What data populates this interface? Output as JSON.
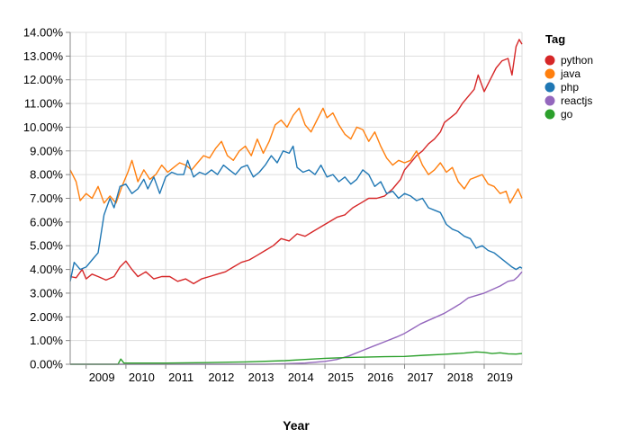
{
  "chart_data": {
    "type": "line",
    "xlabel": "Year",
    "ylabel": "",
    "legend_title": "Tag",
    "legend_position": "right",
    "grid": true,
    "xlim": [
      2008.6,
      2019.95
    ],
    "ylim": [
      0,
      14
    ],
    "x_ticks": [
      {
        "value": 2009,
        "label": "2009"
      },
      {
        "value": 2010,
        "label": "2010"
      },
      {
        "value": 2011,
        "label": "2011"
      },
      {
        "value": 2012,
        "label": "2012"
      },
      {
        "value": 2013,
        "label": "2013"
      },
      {
        "value": 2014,
        "label": "2014"
      },
      {
        "value": 2015,
        "label": "2015"
      },
      {
        "value": 2016,
        "label": "2016"
      },
      {
        "value": 2017,
        "label": "2017"
      },
      {
        "value": 2018,
        "label": "2018"
      },
      {
        "value": 2019,
        "label": "2019"
      }
    ],
    "y_ticks": [
      {
        "value": 0,
        "label": "0.00%"
      },
      {
        "value": 1,
        "label": "1.00%"
      },
      {
        "value": 2,
        "label": "2.00%"
      },
      {
        "value": 3,
        "label": "3.00%"
      },
      {
        "value": 4,
        "label": "4.00%"
      },
      {
        "value": 5,
        "label": "5.00%"
      },
      {
        "value": 6,
        "label": "6.00%"
      },
      {
        "value": 7,
        "label": "7.00%"
      },
      {
        "value": 8,
        "label": "8.00%"
      },
      {
        "value": 9,
        "label": "9.00%"
      },
      {
        "value": 10,
        "label": "10.00%"
      },
      {
        "value": 11,
        "label": "11.00%"
      },
      {
        "value": 12,
        "label": "12.00%"
      },
      {
        "value": 13,
        "label": "13.00%"
      },
      {
        "value": 14,
        "label": "14.00%"
      }
    ],
    "series": [
      {
        "name": "python",
        "color": "#d62728",
        "points": [
          [
            2008.6,
            3.7
          ],
          [
            2008.75,
            3.65
          ],
          [
            2008.9,
            4.0
          ],
          [
            2009.0,
            3.6
          ],
          [
            2009.15,
            3.8
          ],
          [
            2009.3,
            3.7
          ],
          [
            2009.5,
            3.55
          ],
          [
            2009.7,
            3.7
          ],
          [
            2009.85,
            4.1
          ],
          [
            2010.0,
            4.35
          ],
          [
            2010.15,
            4.0
          ],
          [
            2010.3,
            3.7
          ],
          [
            2010.5,
            3.9
          ],
          [
            2010.7,
            3.6
          ],
          [
            2010.9,
            3.7
          ],
          [
            2011.1,
            3.7
          ],
          [
            2011.3,
            3.5
          ],
          [
            2011.5,
            3.6
          ],
          [
            2011.7,
            3.4
          ],
          [
            2011.9,
            3.6
          ],
          [
            2012.1,
            3.7
          ],
          [
            2012.3,
            3.8
          ],
          [
            2012.5,
            3.9
          ],
          [
            2012.7,
            4.1
          ],
          [
            2012.9,
            4.3
          ],
          [
            2013.1,
            4.4
          ],
          [
            2013.3,
            4.6
          ],
          [
            2013.5,
            4.8
          ],
          [
            2013.7,
            5.0
          ],
          [
            2013.9,
            5.3
          ],
          [
            2014.1,
            5.2
          ],
          [
            2014.3,
            5.5
          ],
          [
            2014.5,
            5.4
          ],
          [
            2014.7,
            5.6
          ],
          [
            2014.9,
            5.8
          ],
          [
            2015.1,
            6.0
          ],
          [
            2015.3,
            6.2
          ],
          [
            2015.5,
            6.3
          ],
          [
            2015.7,
            6.6
          ],
          [
            2015.9,
            6.8
          ],
          [
            2016.1,
            7.0
          ],
          [
            2016.3,
            7.0
          ],
          [
            2016.5,
            7.1
          ],
          [
            2016.7,
            7.4
          ],
          [
            2016.9,
            7.8
          ],
          [
            2017.0,
            8.2
          ],
          [
            2017.15,
            8.5
          ],
          [
            2017.3,
            8.8
          ],
          [
            2017.45,
            9.0
          ],
          [
            2017.6,
            9.3
          ],
          [
            2017.75,
            9.5
          ],
          [
            2017.9,
            9.8
          ],
          [
            2018.0,
            10.2
          ],
          [
            2018.15,
            10.4
          ],
          [
            2018.3,
            10.6
          ],
          [
            2018.45,
            11.0
          ],
          [
            2018.6,
            11.3
          ],
          [
            2018.75,
            11.6
          ],
          [
            2018.85,
            12.2
          ],
          [
            2019.0,
            11.5
          ],
          [
            2019.15,
            12.0
          ],
          [
            2019.3,
            12.5
          ],
          [
            2019.45,
            12.8
          ],
          [
            2019.6,
            12.9
          ],
          [
            2019.7,
            12.2
          ],
          [
            2019.8,
            13.4
          ],
          [
            2019.88,
            13.7
          ],
          [
            2019.95,
            13.5
          ]
        ]
      },
      {
        "name": "java",
        "color": "#ff7f0e",
        "points": [
          [
            2008.6,
            8.2
          ],
          [
            2008.75,
            7.7
          ],
          [
            2008.85,
            6.9
          ],
          [
            2009.0,
            7.2
          ],
          [
            2009.15,
            7.0
          ],
          [
            2009.3,
            7.5
          ],
          [
            2009.45,
            6.8
          ],
          [
            2009.6,
            7.1
          ],
          [
            2009.75,
            6.8
          ],
          [
            2009.9,
            7.5
          ],
          [
            2010.05,
            8.1
          ],
          [
            2010.15,
            8.6
          ],
          [
            2010.3,
            7.7
          ],
          [
            2010.45,
            8.2
          ],
          [
            2010.6,
            7.8
          ],
          [
            2010.75,
            8.0
          ],
          [
            2010.9,
            8.4
          ],
          [
            2011.05,
            8.1
          ],
          [
            2011.2,
            8.3
          ],
          [
            2011.35,
            8.5
          ],
          [
            2011.5,
            8.4
          ],
          [
            2011.65,
            8.2
          ],
          [
            2011.8,
            8.5
          ],
          [
            2011.95,
            8.8
          ],
          [
            2012.1,
            8.7
          ],
          [
            2012.25,
            9.1
          ],
          [
            2012.4,
            9.4
          ],
          [
            2012.55,
            8.8
          ],
          [
            2012.7,
            8.6
          ],
          [
            2012.85,
            9.0
          ],
          [
            2013.0,
            9.2
          ],
          [
            2013.15,
            8.8
          ],
          [
            2013.3,
            9.5
          ],
          [
            2013.45,
            8.9
          ],
          [
            2013.6,
            9.4
          ],
          [
            2013.75,
            10.1
          ],
          [
            2013.9,
            10.3
          ],
          [
            2014.05,
            10.0
          ],
          [
            2014.2,
            10.5
          ],
          [
            2014.35,
            10.8
          ],
          [
            2014.5,
            10.1
          ],
          [
            2014.65,
            9.8
          ],
          [
            2014.8,
            10.3
          ],
          [
            2014.95,
            10.8
          ],
          [
            2015.05,
            10.4
          ],
          [
            2015.2,
            10.6
          ],
          [
            2015.35,
            10.1
          ],
          [
            2015.5,
            9.7
          ],
          [
            2015.65,
            9.5
          ],
          [
            2015.8,
            10.0
          ],
          [
            2015.95,
            9.9
          ],
          [
            2016.1,
            9.4
          ],
          [
            2016.25,
            9.8
          ],
          [
            2016.4,
            9.2
          ],
          [
            2016.55,
            8.7
          ],
          [
            2016.7,
            8.4
          ],
          [
            2016.85,
            8.6
          ],
          [
            2017.0,
            8.5
          ],
          [
            2017.15,
            8.6
          ],
          [
            2017.3,
            9.0
          ],
          [
            2017.45,
            8.4
          ],
          [
            2017.6,
            8.0
          ],
          [
            2017.75,
            8.2
          ],
          [
            2017.9,
            8.5
          ],
          [
            2018.05,
            8.1
          ],
          [
            2018.2,
            8.3
          ],
          [
            2018.35,
            7.7
          ],
          [
            2018.5,
            7.4
          ],
          [
            2018.65,
            7.8
          ],
          [
            2018.8,
            7.9
          ],
          [
            2018.95,
            8.0
          ],
          [
            2019.1,
            7.6
          ],
          [
            2019.25,
            7.5
          ],
          [
            2019.4,
            7.2
          ],
          [
            2019.55,
            7.3
          ],
          [
            2019.65,
            6.8
          ],
          [
            2019.75,
            7.1
          ],
          [
            2019.85,
            7.4
          ],
          [
            2019.95,
            7.0
          ]
        ]
      },
      {
        "name": "php",
        "color": "#1f77b4",
        "points": [
          [
            2008.6,
            3.5
          ],
          [
            2008.7,
            4.3
          ],
          [
            2008.85,
            4.0
          ],
          [
            2009.0,
            4.1
          ],
          [
            2009.15,
            4.4
          ],
          [
            2009.3,
            4.7
          ],
          [
            2009.45,
            6.3
          ],
          [
            2009.6,
            7.0
          ],
          [
            2009.7,
            6.6
          ],
          [
            2009.85,
            7.5
          ],
          [
            2010.0,
            7.6
          ],
          [
            2010.15,
            7.2
          ],
          [
            2010.3,
            7.4
          ],
          [
            2010.45,
            7.8
          ],
          [
            2010.55,
            7.4
          ],
          [
            2010.7,
            7.9
          ],
          [
            2010.85,
            7.2
          ],
          [
            2011.0,
            7.9
          ],
          [
            2011.15,
            8.1
          ],
          [
            2011.3,
            8.0
          ],
          [
            2011.45,
            8.0
          ],
          [
            2011.55,
            8.6
          ],
          [
            2011.7,
            7.9
          ],
          [
            2011.85,
            8.1
          ],
          [
            2012.0,
            8.0
          ],
          [
            2012.15,
            8.2
          ],
          [
            2012.3,
            8.0
          ],
          [
            2012.45,
            8.4
          ],
          [
            2012.6,
            8.2
          ],
          [
            2012.75,
            8.0
          ],
          [
            2012.9,
            8.3
          ],
          [
            2013.05,
            8.4
          ],
          [
            2013.2,
            7.9
          ],
          [
            2013.35,
            8.1
          ],
          [
            2013.5,
            8.4
          ],
          [
            2013.65,
            8.8
          ],
          [
            2013.8,
            8.5
          ],
          [
            2013.95,
            9.0
          ],
          [
            2014.1,
            8.9
          ],
          [
            2014.2,
            9.2
          ],
          [
            2014.3,
            8.3
          ],
          [
            2014.45,
            8.1
          ],
          [
            2014.6,
            8.2
          ],
          [
            2014.75,
            8.0
          ],
          [
            2014.9,
            8.4
          ],
          [
            2015.05,
            7.9
          ],
          [
            2015.2,
            8.0
          ],
          [
            2015.35,
            7.7
          ],
          [
            2015.5,
            7.9
          ],
          [
            2015.65,
            7.6
          ],
          [
            2015.8,
            7.8
          ],
          [
            2015.95,
            8.2
          ],
          [
            2016.1,
            8.0
          ],
          [
            2016.25,
            7.5
          ],
          [
            2016.4,
            7.7
          ],
          [
            2016.55,
            7.2
          ],
          [
            2016.7,
            7.3
          ],
          [
            2016.85,
            7.0
          ],
          [
            2017.0,
            7.2
          ],
          [
            2017.15,
            7.1
          ],
          [
            2017.3,
            6.9
          ],
          [
            2017.45,
            7.0
          ],
          [
            2017.6,
            6.6
          ],
          [
            2017.75,
            6.5
          ],
          [
            2017.9,
            6.4
          ],
          [
            2018.05,
            5.9
          ],
          [
            2018.2,
            5.7
          ],
          [
            2018.35,
            5.6
          ],
          [
            2018.5,
            5.4
          ],
          [
            2018.65,
            5.3
          ],
          [
            2018.8,
            4.9
          ],
          [
            2018.95,
            5.0
          ],
          [
            2019.1,
            4.8
          ],
          [
            2019.25,
            4.7
          ],
          [
            2019.4,
            4.5
          ],
          [
            2019.55,
            4.3
          ],
          [
            2019.7,
            4.1
          ],
          [
            2019.8,
            4.0
          ],
          [
            2019.9,
            4.1
          ],
          [
            2019.95,
            4.05
          ]
        ]
      },
      {
        "name": "reactjs",
        "color": "#9467bd",
        "points": [
          [
            2008.6,
            0.0
          ],
          [
            2013.5,
            0.0
          ],
          [
            2014.0,
            0.02
          ],
          [
            2014.5,
            0.05
          ],
          [
            2015.0,
            0.12
          ],
          [
            2015.3,
            0.2
          ],
          [
            2015.6,
            0.35
          ],
          [
            2015.9,
            0.55
          ],
          [
            2016.2,
            0.75
          ],
          [
            2016.5,
            0.95
          ],
          [
            2016.8,
            1.15
          ],
          [
            2017.0,
            1.3
          ],
          [
            2017.2,
            1.5
          ],
          [
            2017.4,
            1.7
          ],
          [
            2017.6,
            1.85
          ],
          [
            2017.8,
            2.0
          ],
          [
            2018.0,
            2.15
          ],
          [
            2018.2,
            2.35
          ],
          [
            2018.4,
            2.55
          ],
          [
            2018.6,
            2.8
          ],
          [
            2018.8,
            2.9
          ],
          [
            2019.0,
            3.0
          ],
          [
            2019.2,
            3.15
          ],
          [
            2019.4,
            3.3
          ],
          [
            2019.6,
            3.5
          ],
          [
            2019.75,
            3.55
          ],
          [
            2019.85,
            3.7
          ],
          [
            2019.95,
            3.9
          ]
        ]
      },
      {
        "name": "go",
        "color": "#2ca02c",
        "points": [
          [
            2008.6,
            0.0
          ],
          [
            2009.8,
            0.0
          ],
          [
            2009.87,
            0.22
          ],
          [
            2009.95,
            0.05
          ],
          [
            2010.5,
            0.05
          ],
          [
            2011.0,
            0.05
          ],
          [
            2012.0,
            0.07
          ],
          [
            2013.0,
            0.1
          ],
          [
            2014.0,
            0.15
          ],
          [
            2014.5,
            0.2
          ],
          [
            2015.0,
            0.25
          ],
          [
            2015.5,
            0.28
          ],
          [
            2016.0,
            0.3
          ],
          [
            2016.5,
            0.32
          ],
          [
            2017.0,
            0.33
          ],
          [
            2017.5,
            0.38
          ],
          [
            2018.0,
            0.42
          ],
          [
            2018.5,
            0.47
          ],
          [
            2018.8,
            0.52
          ],
          [
            2019.0,
            0.5
          ],
          [
            2019.2,
            0.45
          ],
          [
            2019.4,
            0.48
          ],
          [
            2019.6,
            0.44
          ],
          [
            2019.8,
            0.43
          ],
          [
            2019.95,
            0.45
          ]
        ]
      }
    ]
  }
}
